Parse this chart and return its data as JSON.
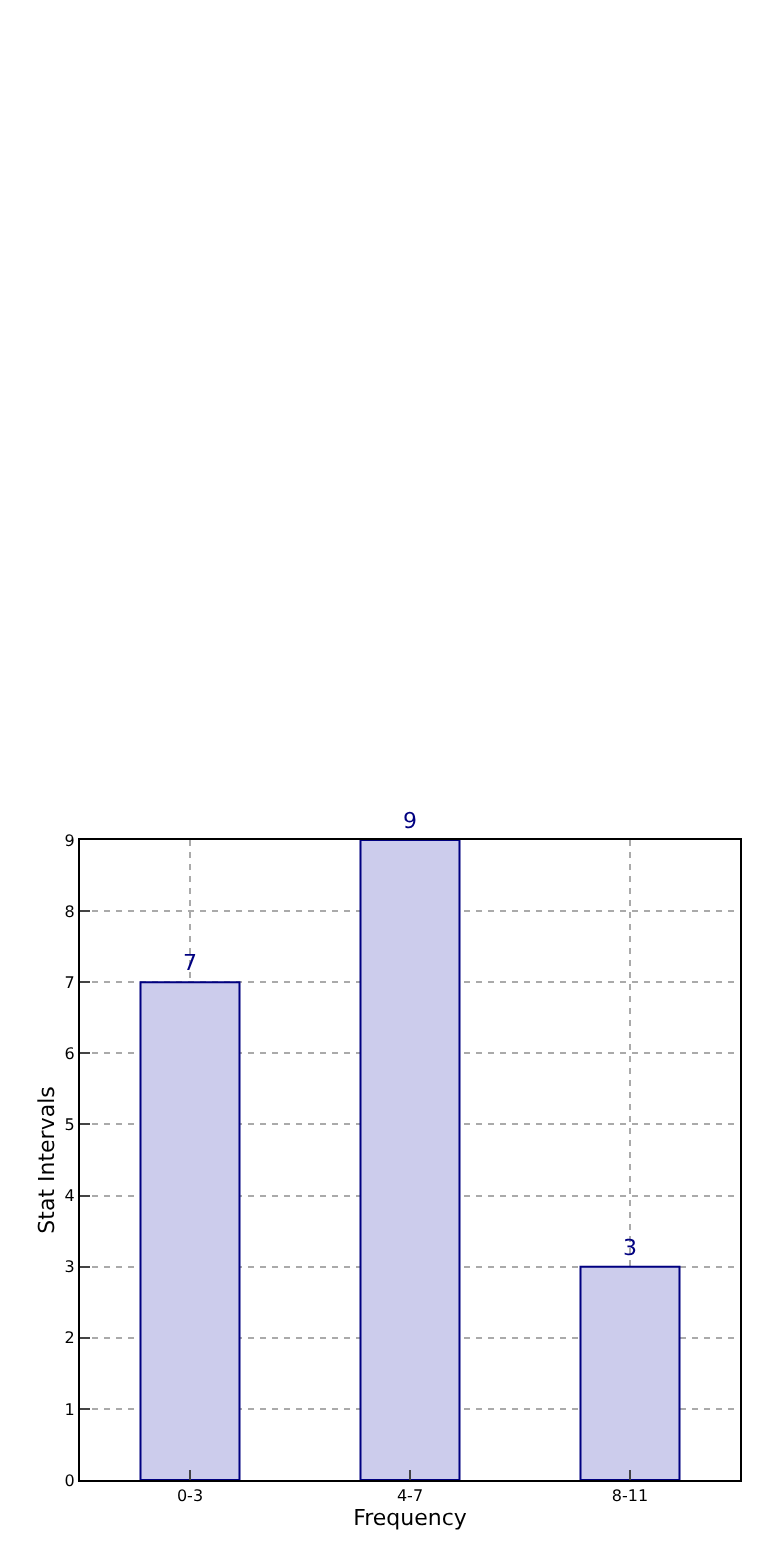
{
  "chart_data": {
    "type": "bar",
    "xlabel": "Frequency",
    "ylabel": "Stat Intervals",
    "categories": [
      "0-3",
      "4-7",
      "8-11"
    ],
    "values": [
      7,
      9,
      3
    ],
    "color": "#ccccec",
    "ylim": [
      0,
      9
    ],
    "yticks": [
      0,
      1,
      2,
      3,
      4,
      5,
      6,
      7,
      8,
      9
    ],
    "grid": true,
    "data_labels": true
  }
}
